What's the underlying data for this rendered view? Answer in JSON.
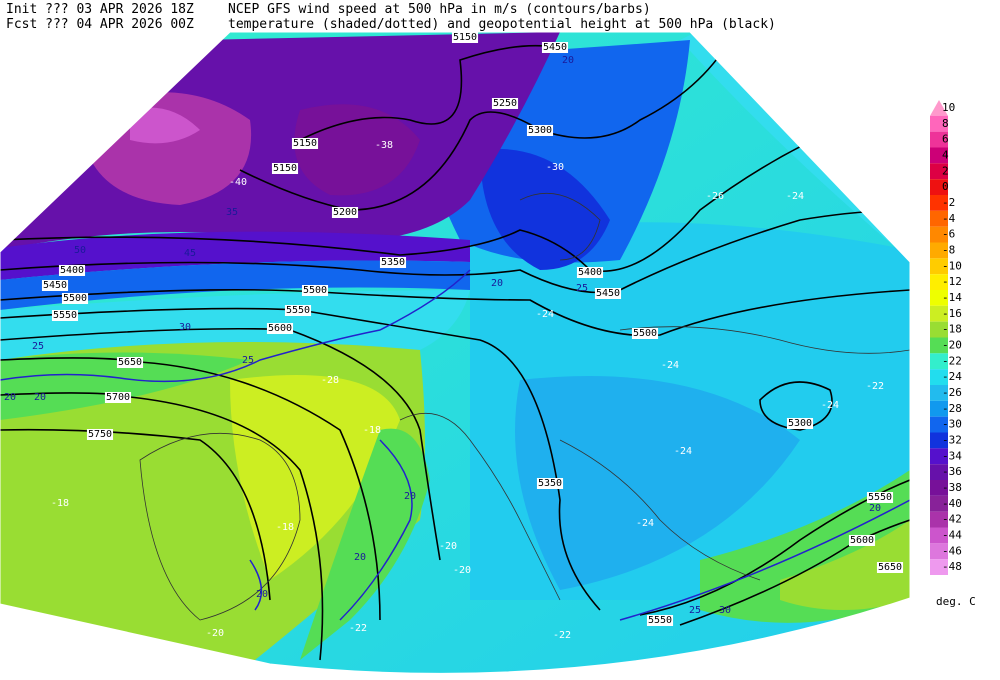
{
  "header": {
    "init": "Init  ??? 03 APR 2026 18Z",
    "fcst": "Fcst ??? 04 APR 2026 00Z",
    "line1": "NCEP GFS wind speed at 500 hPa in m/s (contours/barbs)",
    "line2": "temperature (shaded/dotted) and geopotential height at 500 hPa (black)"
  },
  "legend": {
    "unit": "deg. C",
    "levels": [
      {
        "value": 10,
        "color": "#ff99cc"
      },
      {
        "value": 8,
        "color": "#ff66bb"
      },
      {
        "value": 6,
        "color": "#ee3399"
      },
      {
        "value": 4,
        "color": "#cc0077"
      },
      {
        "value": 2,
        "color": "#dd0044"
      },
      {
        "value": 0,
        "color": "#ee1111"
      },
      {
        "value": -2,
        "color": "#ff3300"
      },
      {
        "value": -4,
        "color": "#ff6600"
      },
      {
        "value": -6,
        "color": "#ff8800"
      },
      {
        "value": -8,
        "color": "#ffaa00"
      },
      {
        "value": -10,
        "color": "#ffcc00"
      },
      {
        "value": -12,
        "color": "#ffee00"
      },
      {
        "value": -14,
        "color": "#eeff00"
      },
      {
        "value": -16,
        "color": "#ccee22"
      },
      {
        "value": -18,
        "color": "#99dd33"
      },
      {
        "value": -20,
        "color": "#55dd55"
      },
      {
        "value": -22,
        "color": "#33eecc"
      },
      {
        "value": -24,
        "color": "#22ddee"
      },
      {
        "value": -26,
        "color": "#22bbee"
      },
      {
        "value": -28,
        "color": "#1199ee"
      },
      {
        "value": -30,
        "color": "#1166ee"
      },
      {
        "value": -32,
        "color": "#1133dd"
      },
      {
        "value": -34,
        "color": "#5511cc"
      },
      {
        "value": -36,
        "color": "#6611aa"
      },
      {
        "value": -38,
        "color": "#771199"
      },
      {
        "value": -40,
        "color": "#882299"
      },
      {
        "value": -42,
        "color": "#aa33aa"
      },
      {
        "value": -44,
        "color": "#cc55cc"
      },
      {
        "value": -46,
        "color": "#dd77dd"
      },
      {
        "value": -48,
        "color": "#ee99ee"
      }
    ]
  },
  "height_labels": [
    "5150",
    "5450",
    "5250",
    "5300",
    "5150",
    "5150",
    "5200",
    "5350",
    "5400",
    "5450",
    "5400",
    "5450",
    "5500",
    "5550",
    "5500",
    "5550",
    "5600",
    "5500",
    "5650",
    "5700",
    "5750",
    "5300",
    "5550",
    "5600",
    "5650",
    "5550",
    "5350"
  ],
  "temperature_labels": [
    "-40",
    "-38",
    "-30",
    "-28",
    "-26",
    "-24",
    "-24",
    "-24",
    "-22",
    "-24",
    "-24",
    "-24",
    "-18",
    "-18",
    "-18",
    "-20",
    "-20",
    "-22",
    "-20",
    "-22"
  ],
  "wind_labels": [
    "20",
    "35",
    "45",
    "50",
    "30",
    "25",
    "20",
    "20",
    "25",
    "20",
    "20",
    "20",
    "25",
    "30",
    "20",
    "25",
    "20"
  ]
}
